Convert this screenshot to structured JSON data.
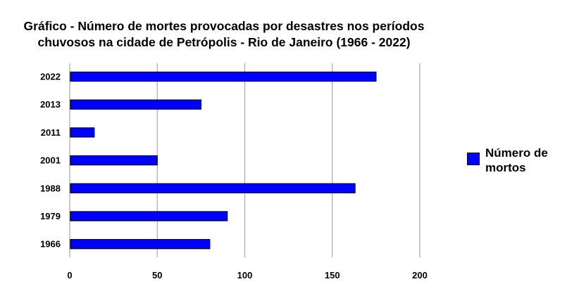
{
  "chart_data": {
    "type": "bar",
    "orientation": "horizontal",
    "title_lines": [
      "Gráfico - Número de mortes provocadas por desastres nos períodos",
      "chuvosos na cidade de Petrópolis - Rio de Janeiro (1966 - 2022)"
    ],
    "categories": [
      "2022",
      "2013",
      "2011",
      "2001",
      "1988",
      "1979",
      "1966"
    ],
    "series": [
      {
        "name": "Número de mortos",
        "values": [
          175,
          75,
          14,
          50,
          163,
          90,
          80
        ],
        "color": "#0000ff"
      }
    ],
    "x_ticks": [
      "0",
      "50",
      "100",
      "150",
      "200"
    ],
    "xlim": [
      0,
      200
    ],
    "grid": "vertical",
    "legend_position": "right"
  }
}
